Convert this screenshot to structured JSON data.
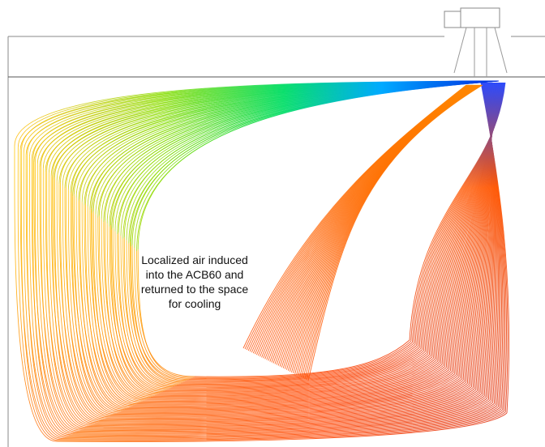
{
  "annotation": {
    "lines": [
      "Localized air induced",
      "into the ACB60 and",
      "returned to the space",
      "for cooling"
    ]
  }
}
